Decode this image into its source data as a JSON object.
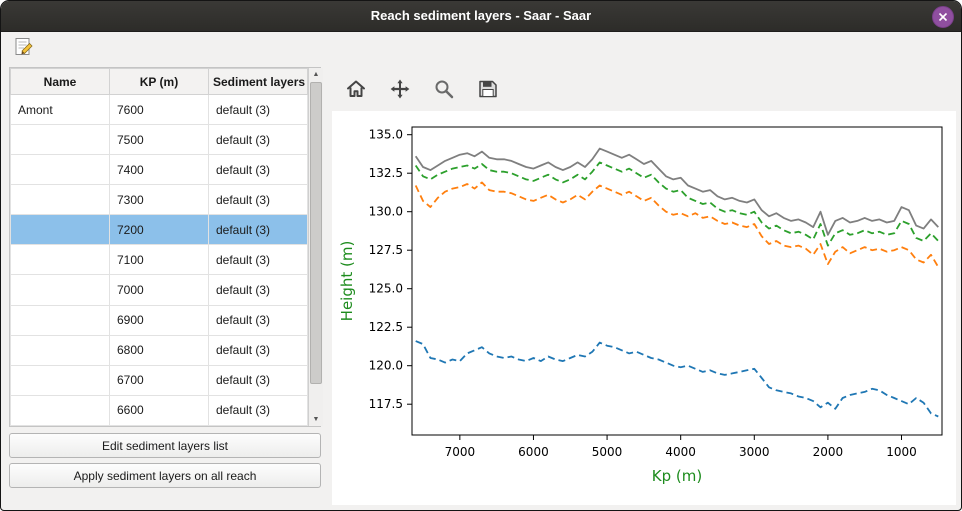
{
  "window": {
    "title": "Reach sediment layers - Saar - Saar"
  },
  "icons": {
    "arrow_up": "▲",
    "arrow_down": "▼"
  },
  "table": {
    "columns": [
      "Name",
      "KP (m)",
      "Sediment layers"
    ],
    "rows": [
      {
        "name": "Amont",
        "kp": "7600",
        "layers": "default (3)",
        "selected": false
      },
      {
        "name": "",
        "kp": "7500",
        "layers": "default (3)",
        "selected": false
      },
      {
        "name": "",
        "kp": "7400",
        "layers": "default (3)",
        "selected": false
      },
      {
        "name": "",
        "kp": "7300",
        "layers": "default (3)",
        "selected": false
      },
      {
        "name": "",
        "kp": "7200",
        "layers": "default (3)",
        "selected": true
      },
      {
        "name": "",
        "kp": "7100",
        "layers": "default (3)",
        "selected": false
      },
      {
        "name": "",
        "kp": "7000",
        "layers": "default (3)",
        "selected": false
      },
      {
        "name": "",
        "kp": "6900",
        "layers": "default (3)",
        "selected": false
      },
      {
        "name": "",
        "kp": "6800",
        "layers": "default (3)",
        "selected": false
      },
      {
        "name": "",
        "kp": "6700",
        "layers": "default (3)",
        "selected": false
      },
      {
        "name": "",
        "kp": "6600",
        "layers": "default (3)",
        "selected": false
      }
    ]
  },
  "buttons": {
    "edit": "Edit sediment layers list",
    "apply": "Apply sediment layers on all reach"
  },
  "chart_data": {
    "type": "line",
    "title": "",
    "xlabel": "Kp (m)",
    "ylabel": "Height (m)",
    "axis_label_color": "#1e8c1e",
    "x_inverted": true,
    "xlim": [
      7650,
      450
    ],
    "ylim": [
      115.5,
      135.5
    ],
    "x_ticks": [
      7000,
      6000,
      5000,
      4000,
      3000,
      2000,
      1000
    ],
    "y_ticks": [
      117.5,
      120.0,
      122.5,
      125.0,
      127.5,
      130.0,
      132.5,
      135.0
    ],
    "grid": false,
    "legend": "none",
    "x": [
      7600,
      7500,
      7400,
      7300,
      7200,
      7100,
      7000,
      6900,
      6800,
      6700,
      6600,
      6500,
      6400,
      6300,
      6200,
      6100,
      6000,
      5900,
      5800,
      5700,
      5600,
      5500,
      5400,
      5300,
      5200,
      5100,
      5000,
      4900,
      4800,
      4700,
      4600,
      4500,
      4400,
      4300,
      4200,
      4100,
      4000,
      3900,
      3800,
      3700,
      3600,
      3500,
      3400,
      3300,
      3200,
      3100,
      3000,
      2900,
      2800,
      2700,
      2600,
      2500,
      2400,
      2300,
      2200,
      2100,
      2000,
      1900,
      1800,
      1700,
      1600,
      1500,
      1400,
      1300,
      1200,
      1100,
      1000,
      900,
      800,
      700,
      600,
      500
    ],
    "series": [
      {
        "name": "gray-solid-top",
        "color": "#7f7f7f",
        "style": "solid",
        "values": [
          133.6,
          132.9,
          132.7,
          133.0,
          133.3,
          133.5,
          133.7,
          133.8,
          133.6,
          133.9,
          133.5,
          133.4,
          133.4,
          133.3,
          133.1,
          132.9,
          132.8,
          133.0,
          133.2,
          132.9,
          132.7,
          132.9,
          133.2,
          132.9,
          133.4,
          134.1,
          133.9,
          133.7,
          133.5,
          133.7,
          133.4,
          133.1,
          133.3,
          132.8,
          132.3,
          132.1,
          132.2,
          131.7,
          131.5,
          131.3,
          131.4,
          131.0,
          130.8,
          130.9,
          130.7,
          130.6,
          130.8,
          130.1,
          129.7,
          129.9,
          129.6,
          129.4,
          129.5,
          129.3,
          129.0,
          130.0,
          128.5,
          129.4,
          129.6,
          129.3,
          129.4,
          129.6,
          129.4,
          129.5,
          129.3,
          129.4,
          130.3,
          130.1,
          129.1,
          128.9,
          129.5,
          129.0
        ]
      },
      {
        "name": "green-dashed",
        "color": "#2ca02c",
        "style": "dashed",
        "values": [
          133.0,
          132.3,
          132.1,
          132.4,
          132.6,
          132.8,
          132.9,
          133.0,
          132.8,
          133.1,
          132.7,
          132.6,
          132.6,
          132.5,
          132.3,
          132.1,
          132.0,
          132.2,
          132.4,
          132.1,
          131.9,
          132.1,
          132.4,
          132.1,
          132.6,
          133.2,
          133.0,
          132.8,
          132.6,
          132.8,
          132.5,
          132.2,
          132.4,
          131.9,
          131.5,
          131.3,
          131.4,
          130.9,
          130.7,
          130.5,
          130.6,
          130.2,
          130.0,
          130.1,
          129.9,
          129.8,
          130.0,
          129.3,
          128.9,
          129.1,
          128.8,
          128.6,
          128.7,
          128.5,
          128.2,
          129.2,
          127.8,
          128.6,
          128.8,
          128.5,
          128.6,
          128.8,
          128.6,
          128.7,
          128.5,
          128.6,
          129.4,
          129.2,
          128.3,
          128.1,
          128.6,
          128.1
        ]
      },
      {
        "name": "orange-dashed",
        "color": "#ff7f0e",
        "style": "dashed",
        "values": [
          131.7,
          130.7,
          130.3,
          130.9,
          131.3,
          131.5,
          131.6,
          131.8,
          131.5,
          131.9,
          131.4,
          131.3,
          131.3,
          131.2,
          131.0,
          130.8,
          130.7,
          130.9,
          131.1,
          130.8,
          130.6,
          130.8,
          131.1,
          130.8,
          131.3,
          131.7,
          131.5,
          131.3,
          131.1,
          131.3,
          131.0,
          130.7,
          130.9,
          130.4,
          130.0,
          129.8,
          129.9,
          129.7,
          129.9,
          129.6,
          129.7,
          129.4,
          129.2,
          129.3,
          129.1,
          129.0,
          129.2,
          128.4,
          127.9,
          128.1,
          127.8,
          127.7,
          127.8,
          127.6,
          127.2,
          127.9,
          126.6,
          127.4,
          127.7,
          127.3,
          127.5,
          127.7,
          127.5,
          127.6,
          127.4,
          127.5,
          127.7,
          127.5,
          126.9,
          126.7,
          127.2,
          126.4
        ]
      },
      {
        "name": "blue-dashed-bottom",
        "color": "#1f77b4",
        "style": "dashed",
        "values": [
          121.6,
          121.4,
          120.5,
          120.4,
          120.2,
          120.4,
          120.3,
          120.8,
          121.0,
          121.2,
          120.8,
          120.6,
          120.5,
          120.6,
          120.4,
          120.3,
          120.5,
          120.3,
          120.6,
          120.4,
          120.3,
          120.5,
          120.7,
          120.6,
          120.9,
          121.5,
          121.3,
          121.2,
          121.0,
          120.8,
          120.9,
          120.7,
          120.5,
          120.4,
          120.2,
          120.0,
          119.9,
          120.0,
          119.8,
          119.6,
          119.7,
          119.5,
          119.4,
          119.5,
          119.6,
          119.7,
          119.8,
          119.2,
          118.6,
          118.4,
          118.3,
          118.2,
          118.0,
          117.9,
          117.7,
          117.3,
          117.6,
          117.2,
          117.9,
          118.1,
          118.2,
          118.3,
          118.5,
          118.4,
          118.1,
          117.9,
          117.7,
          117.5,
          117.9,
          117.6,
          116.9,
          116.7
        ]
      }
    ]
  }
}
